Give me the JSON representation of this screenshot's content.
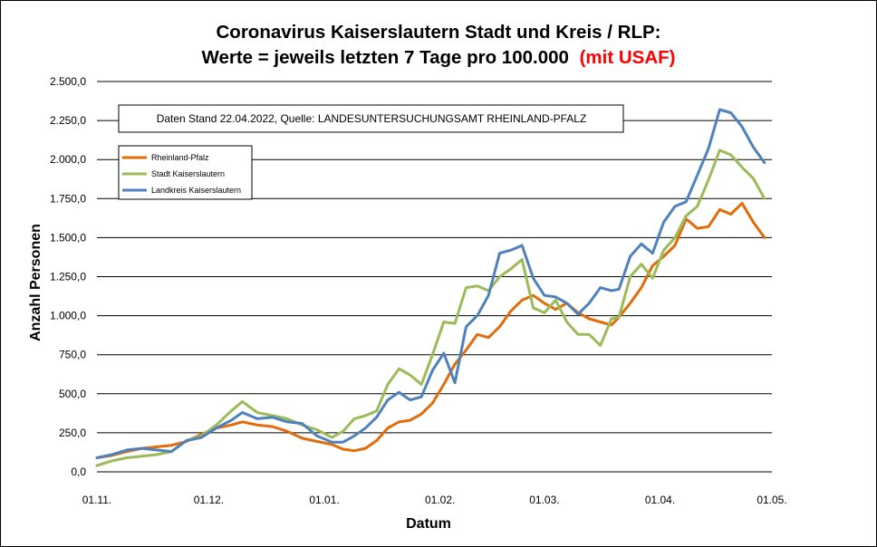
{
  "chart_data": {
    "type": "line",
    "title_line1": "Coronavirus Kaiserslautern Stadt und Kreis / RLP:",
    "title_line2_main": "Werte = jeweils letzten 7 Tage pro 100.000",
    "title_line2_highlight": "(mit USAF)",
    "title_highlight_color": "#ff0000",
    "xlabel": "Datum",
    "ylabel": "Anzahl Personen",
    "note": "Daten Stand 22.04.2022, Quelle: LANDESUNTERSUCHUNGSAMT RHEINLAND-PFALZ",
    "ylim": [
      0,
      2500
    ],
    "yticks": [
      0,
      250,
      500,
      750,
      1000,
      1250,
      1500,
      1750,
      2000,
      2250,
      2500
    ],
    "ytick_labels": [
      "0,0",
      "250,0",
      "500,0",
      "750,0",
      "1.000,0",
      "1.250,0",
      "1.500,0",
      "1.750,0",
      "2.000,0",
      "2.250,0",
      "2.500,0"
    ],
    "xlim": [
      "2021-11-01",
      "2022-05-01"
    ],
    "xticks": [
      "2021-11-01",
      "2021-12-01",
      "2022-01-01",
      "2022-02-01",
      "2022-03-01",
      "2022-04-01",
      "2022-05-01"
    ],
    "xtick_labels": [
      "01.11.",
      "01.12.",
      "01.01.",
      "01.02.",
      "01.03.",
      "01.04.",
      "01.05."
    ],
    "grid": "horizontal",
    "legend_position": "top-left",
    "series": [
      {
        "name": "Rheinland-Pfalz",
        "color": "#e36c0a",
        "points": [
          [
            "2021-11-01",
            90
          ],
          [
            "2021-11-05",
            105
          ],
          [
            "2021-11-09",
            130
          ],
          [
            "2021-11-13",
            150
          ],
          [
            "2021-11-17",
            160
          ],
          [
            "2021-11-21",
            170
          ],
          [
            "2021-11-25",
            195
          ],
          [
            "2021-11-29",
            240
          ],
          [
            "2021-12-03",
            280
          ],
          [
            "2021-12-07",
            300
          ],
          [
            "2021-12-10",
            320
          ],
          [
            "2021-12-14",
            300
          ],
          [
            "2021-12-18",
            290
          ],
          [
            "2021-12-22",
            260
          ],
          [
            "2021-12-26",
            215
          ],
          [
            "2021-12-30",
            195
          ],
          [
            "2022-01-03",
            175
          ],
          [
            "2022-01-06",
            145
          ],
          [
            "2022-01-09",
            135
          ],
          [
            "2022-01-12",
            150
          ],
          [
            "2022-01-15",
            200
          ],
          [
            "2022-01-18",
            280
          ],
          [
            "2022-01-21",
            320
          ],
          [
            "2022-01-24",
            330
          ],
          [
            "2022-01-27",
            370
          ],
          [
            "2022-01-30",
            440
          ],
          [
            "2022-02-02",
            560
          ],
          [
            "2022-02-05",
            690
          ],
          [
            "2022-02-08",
            780
          ],
          [
            "2022-02-11",
            880
          ],
          [
            "2022-02-14",
            860
          ],
          [
            "2022-02-17",
            930
          ],
          [
            "2022-02-20",
            1030
          ],
          [
            "2022-02-23",
            1100
          ],
          [
            "2022-02-26",
            1130
          ],
          [
            "2022-03-01",
            1080
          ],
          [
            "2022-03-04",
            1040
          ],
          [
            "2022-03-07",
            1080
          ],
          [
            "2022-03-10",
            1020
          ],
          [
            "2022-03-13",
            980
          ],
          [
            "2022-03-16",
            960
          ],
          [
            "2022-03-19",
            940
          ],
          [
            "2022-03-21",
            990
          ],
          [
            "2022-03-24",
            1080
          ],
          [
            "2022-03-27",
            1180
          ],
          [
            "2022-03-30",
            1320
          ],
          [
            "2022-04-02",
            1380
          ],
          [
            "2022-04-05",
            1450
          ],
          [
            "2022-04-08",
            1620
          ],
          [
            "2022-04-11",
            1560
          ],
          [
            "2022-04-14",
            1570
          ],
          [
            "2022-04-17",
            1680
          ],
          [
            "2022-04-20",
            1650
          ],
          [
            "2022-04-23",
            1720
          ],
          [
            "2022-04-26",
            1600
          ],
          [
            "2022-04-29",
            1500
          ]
        ]
      },
      {
        "name": "Stadt Kaiserslautern",
        "color": "#9bbb59",
        "points": [
          [
            "2021-11-01",
            40
          ],
          [
            "2021-11-05",
            70
          ],
          [
            "2021-11-09",
            90
          ],
          [
            "2021-11-13",
            100
          ],
          [
            "2021-11-17",
            110
          ],
          [
            "2021-11-21",
            130
          ],
          [
            "2021-11-25",
            200
          ],
          [
            "2021-11-29",
            230
          ],
          [
            "2021-12-03",
            300
          ],
          [
            "2021-12-07",
            390
          ],
          [
            "2021-12-10",
            450
          ],
          [
            "2021-12-14",
            380
          ],
          [
            "2021-12-18",
            360
          ],
          [
            "2021-12-22",
            340
          ],
          [
            "2021-12-26",
            300
          ],
          [
            "2021-12-30",
            270
          ],
          [
            "2022-01-03",
            220
          ],
          [
            "2022-01-06",
            260
          ],
          [
            "2022-01-09",
            340
          ],
          [
            "2022-01-12",
            360
          ],
          [
            "2022-01-15",
            390
          ],
          [
            "2022-01-18",
            560
          ],
          [
            "2022-01-21",
            660
          ],
          [
            "2022-01-24",
            620
          ],
          [
            "2022-01-27",
            560
          ],
          [
            "2022-01-30",
            750
          ],
          [
            "2022-02-02",
            960
          ],
          [
            "2022-02-05",
            950
          ],
          [
            "2022-02-08",
            1180
          ],
          [
            "2022-02-11",
            1190
          ],
          [
            "2022-02-14",
            1160
          ],
          [
            "2022-02-17",
            1250
          ],
          [
            "2022-02-20",
            1300
          ],
          [
            "2022-02-23",
            1360
          ],
          [
            "2022-02-26",
            1050
          ],
          [
            "2022-03-01",
            1020
          ],
          [
            "2022-03-04",
            1100
          ],
          [
            "2022-03-07",
            960
          ],
          [
            "2022-03-10",
            880
          ],
          [
            "2022-03-13",
            880
          ],
          [
            "2022-03-16",
            810
          ],
          [
            "2022-03-19",
            980
          ],
          [
            "2022-03-21",
            990
          ],
          [
            "2022-03-24",
            1250
          ],
          [
            "2022-03-27",
            1330
          ],
          [
            "2022-03-30",
            1240
          ],
          [
            "2022-04-02",
            1420
          ],
          [
            "2022-04-05",
            1500
          ],
          [
            "2022-04-08",
            1640
          ],
          [
            "2022-04-11",
            1700
          ],
          [
            "2022-04-14",
            1870
          ],
          [
            "2022-04-17",
            2060
          ],
          [
            "2022-04-20",
            2030
          ],
          [
            "2022-04-23",
            1950
          ],
          [
            "2022-04-26",
            1880
          ],
          [
            "2022-04-29",
            1750
          ]
        ]
      },
      {
        "name": "Landkreis Kaiserslautern",
        "color": "#4f81bd",
        "points": [
          [
            "2021-11-01",
            90
          ],
          [
            "2021-11-05",
            110
          ],
          [
            "2021-11-09",
            140
          ],
          [
            "2021-11-13",
            150
          ],
          [
            "2021-11-17",
            140
          ],
          [
            "2021-11-21",
            130
          ],
          [
            "2021-11-25",
            200
          ],
          [
            "2021-11-29",
            220
          ],
          [
            "2021-12-03",
            280
          ],
          [
            "2021-12-07",
            330
          ],
          [
            "2021-12-10",
            380
          ],
          [
            "2021-12-14",
            340
          ],
          [
            "2021-12-18",
            350
          ],
          [
            "2021-12-22",
            320
          ],
          [
            "2021-12-26",
            310
          ],
          [
            "2021-12-30",
            230
          ],
          [
            "2022-01-03",
            190
          ],
          [
            "2022-01-06",
            190
          ],
          [
            "2022-01-09",
            230
          ],
          [
            "2022-01-12",
            280
          ],
          [
            "2022-01-15",
            350
          ],
          [
            "2022-01-18",
            460
          ],
          [
            "2022-01-21",
            510
          ],
          [
            "2022-01-24",
            460
          ],
          [
            "2022-01-27",
            480
          ],
          [
            "2022-01-30",
            650
          ],
          [
            "2022-02-02",
            760
          ],
          [
            "2022-02-05",
            570
          ],
          [
            "2022-02-08",
            930
          ],
          [
            "2022-02-11",
            1000
          ],
          [
            "2022-02-14",
            1130
          ],
          [
            "2022-02-17",
            1400
          ],
          [
            "2022-02-20",
            1420
          ],
          [
            "2022-02-23",
            1450
          ],
          [
            "2022-02-26",
            1240
          ],
          [
            "2022-03-01",
            1130
          ],
          [
            "2022-03-04",
            1120
          ],
          [
            "2022-03-07",
            1080
          ],
          [
            "2022-03-10",
            1010
          ],
          [
            "2022-03-13",
            1080
          ],
          [
            "2022-03-16",
            1180
          ],
          [
            "2022-03-19",
            1160
          ],
          [
            "2022-03-21",
            1170
          ],
          [
            "2022-03-24",
            1380
          ],
          [
            "2022-03-27",
            1460
          ],
          [
            "2022-03-30",
            1400
          ],
          [
            "2022-04-02",
            1600
          ],
          [
            "2022-04-05",
            1700
          ],
          [
            "2022-04-08",
            1730
          ],
          [
            "2022-04-11",
            1900
          ],
          [
            "2022-04-14",
            2070
          ],
          [
            "2022-04-17",
            2320
          ],
          [
            "2022-04-20",
            2300
          ],
          [
            "2022-04-23",
            2210
          ],
          [
            "2022-04-26",
            2080
          ],
          [
            "2022-04-29",
            1980
          ]
        ]
      }
    ]
  }
}
